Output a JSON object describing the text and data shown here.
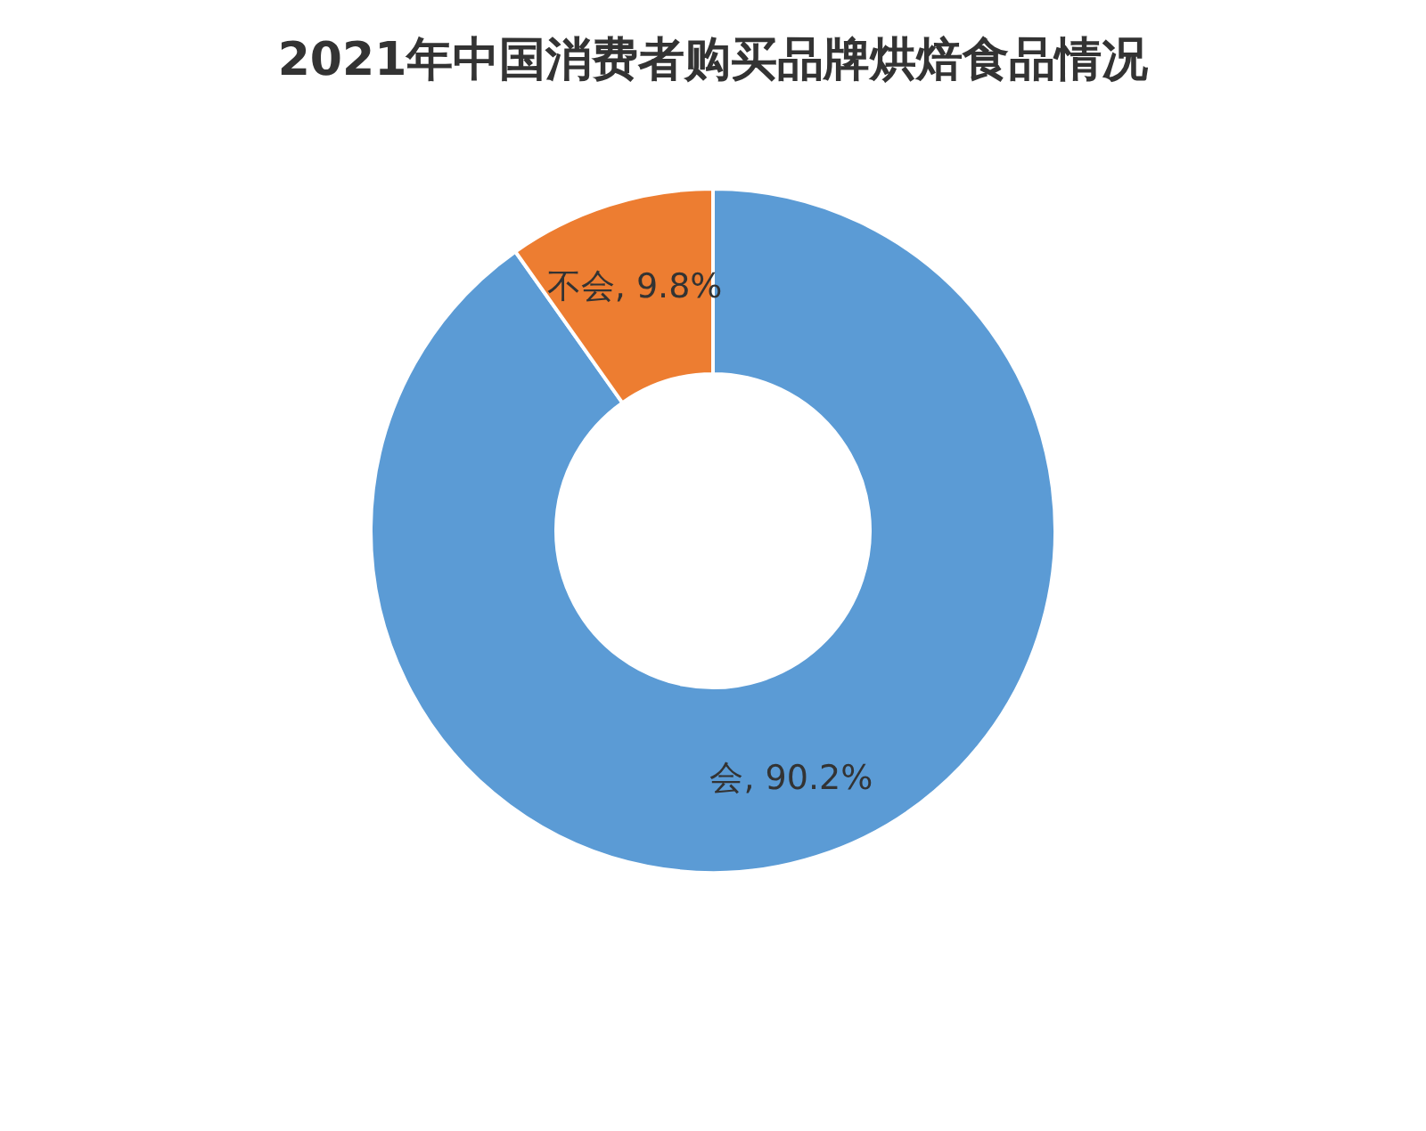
{
  "chart_data": {
    "type": "donut",
    "title": "2021年中国消费者购买品牌烘焙食品情况",
    "categories": [
      "会",
      "不会"
    ],
    "values": [
      90.2,
      9.8
    ],
    "value_labels": [
      ", 90.2%",
      ", 9.8%"
    ],
    "colors": [
      "#5b9bd5",
      "#ed7d31"
    ]
  }
}
